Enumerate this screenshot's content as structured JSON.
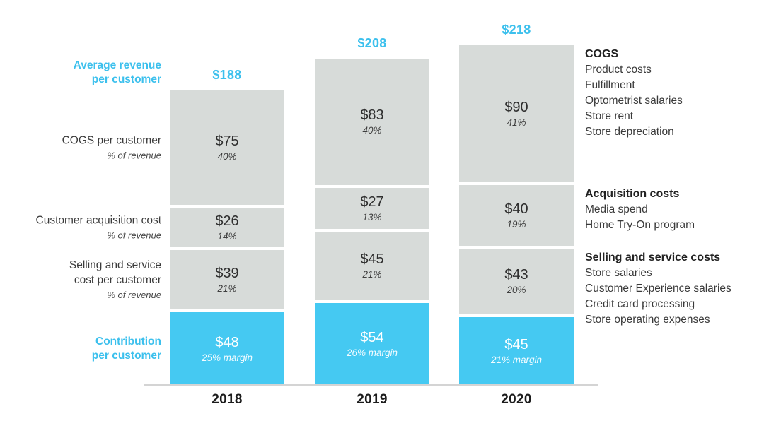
{
  "labels": {
    "avg_revenue": {
      "line1": "Average revenue",
      "line2": "per customer"
    },
    "cogs": {
      "title": "COGS per customer",
      "sub": "% of revenue"
    },
    "acquisition": {
      "title": "Customer acquisition cost",
      "sub": "% of revenue"
    },
    "selling": {
      "line1": "Selling and service",
      "line2": "cost per customer",
      "sub": "% of revenue"
    },
    "contribution": {
      "line1": "Contribution",
      "line2": "per customer"
    }
  },
  "chart_data": {
    "type": "bar",
    "stacked": true,
    "categories": [
      "2018",
      "2019",
      "2020"
    ],
    "totals": {
      "values": [
        188,
        208,
        218
      ],
      "labels": [
        "$188",
        "$208",
        "$218"
      ]
    },
    "series": [
      {
        "name": "COGS per customer",
        "values": [
          75,
          83,
          90
        ],
        "labels": [
          "$75",
          "$83",
          "$90"
        ],
        "pct": [
          "40%",
          "40%",
          "41%"
        ],
        "color": "#d7dbd9"
      },
      {
        "name": "Customer acquisition cost",
        "values": [
          26,
          27,
          40
        ],
        "labels": [
          "$26",
          "$27",
          "$40"
        ],
        "pct": [
          "14%",
          "13%",
          "19%"
        ],
        "color": "#d7dbd9"
      },
      {
        "name": "Selling and service cost per customer",
        "values": [
          39,
          45,
          43
        ],
        "labels": [
          "$39",
          "$45",
          "$43"
        ],
        "pct": [
          "21%",
          "21%",
          "20%"
        ],
        "color": "#d7dbd9"
      },
      {
        "name": "Contribution per customer",
        "values": [
          48,
          54,
          45
        ],
        "labels": [
          "$48",
          "$54",
          "$45"
        ],
        "pct": [
          "25% margin",
          "26% margin",
          "21% margin"
        ],
        "color": "#45c9f2"
      }
    ],
    "xlabel": "",
    "ylabel": "",
    "grid": false,
    "legend_position": "right"
  },
  "legend": {
    "groups": [
      {
        "title": "COGS",
        "items": [
          "Product costs",
          "Fulfillment",
          "Optometrist salaries",
          "Store rent",
          "Store depreciation"
        ]
      },
      {
        "title": "Acquisition costs",
        "items": [
          "Media spend",
          "Home Try-On program"
        ]
      },
      {
        "title": "Selling and service costs",
        "items": [
          "Store salaries",
          "Customer Experience salaries",
          "Credit card processing",
          "Store operating expenses"
        ]
      }
    ]
  },
  "colors": {
    "accent_cyan_text": "#3cc0ed",
    "bar_cyan": "#45c9f2",
    "bar_gray": "#d7dbd9",
    "axis_gray": "#d4d4d4",
    "text_dark": "#3a3a3a"
  }
}
